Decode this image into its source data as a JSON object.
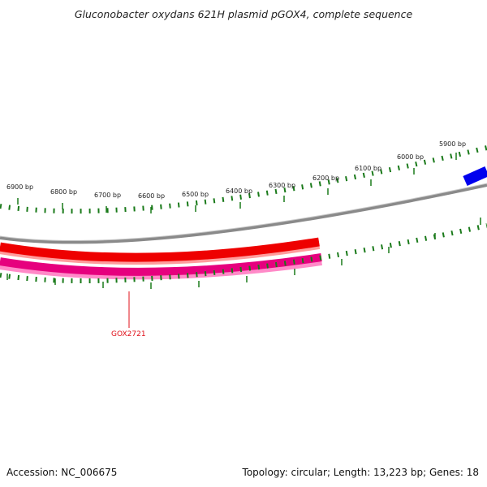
{
  "map": {
    "title": "Gluconobacter oxydans 621H plasmid pGOX4, complete sequence",
    "accession": "Accession: NC_006675",
    "summary": "Topology: circular; Length: 13,223 bp; Genes: 18"
  },
  "ruler": {
    "labels": [
      "6900 bp",
      "6800 bp",
      "6700 bp",
      "6600 bp",
      "6500 bp",
      "6400 bp",
      "6300 bp",
      "6200 bp",
      "6100 bp",
      "6000 bp",
      "5900 bp"
    ]
  },
  "genes": [
    {
      "label": "GOX2721",
      "color": "#e6007e"
    }
  ],
  "colors": {
    "backbone": "#8a8a8a",
    "forward_feature": "#ee0000",
    "reverse_feature": "#e6007e",
    "blue_feature": "#0000ee",
    "ticks": "#1a7a1a",
    "gene_label": "#e0101a"
  }
}
